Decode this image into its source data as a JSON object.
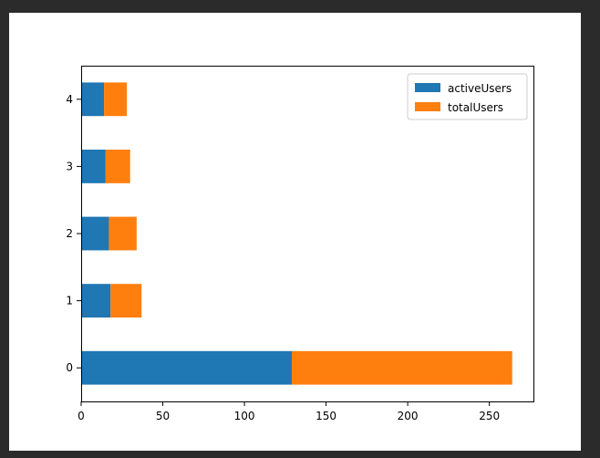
{
  "chart_data": {
    "type": "bar",
    "orientation": "horizontal",
    "stacked": true,
    "categories": [
      "0",
      "1",
      "2",
      "3",
      "4"
    ],
    "series": [
      {
        "name": "activeUsers",
        "values": [
          129,
          18,
          17,
          15,
          14
        ],
        "color": "#1f77b4"
      },
      {
        "name": "totalUsers",
        "values": [
          135,
          19,
          17,
          15,
          14
        ],
        "color": "#ff7f0e"
      }
    ],
    "xlim": [
      0,
      277
    ],
    "xticks": [
      0,
      50,
      100,
      150,
      200,
      250
    ],
    "title": "",
    "xlabel": "",
    "ylabel": "",
    "grid": false,
    "legend": "top-right"
  }
}
